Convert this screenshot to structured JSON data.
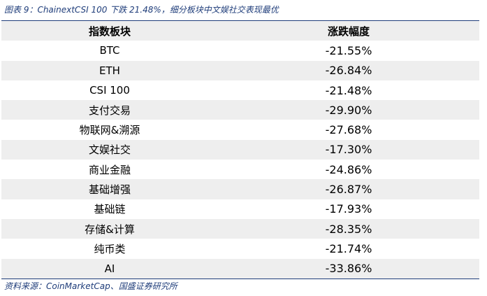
{
  "caption": "图表 9：ChainextCSI 100 下跌 21.48%，细分板块中文娱社交表现最优",
  "table": {
    "headers": {
      "name": "指数板块",
      "change": "涨跌幅度"
    },
    "rows": [
      {
        "name": "BTC",
        "change": "-21.55%"
      },
      {
        "name": "ETH",
        "change": "-26.84%"
      },
      {
        "name": "CSI 100",
        "change": "-21.48%"
      },
      {
        "name": "支付交易",
        "change": "-29.90%"
      },
      {
        "name": "物联网&溯源",
        "change": "-27.68%"
      },
      {
        "name": "文娱社交",
        "change": "-17.30%"
      },
      {
        "name": "商业金融",
        "change": "-24.86%"
      },
      {
        "name": "基础增强",
        "change": "-26.87%"
      },
      {
        "name": "基础链",
        "change": "-17.93%"
      },
      {
        "name": "存储&计算",
        "change": "-28.35%"
      },
      {
        "name": "纯币类",
        "change": "-21.74%"
      },
      {
        "name": "AI",
        "change": "-33.86%"
      }
    ]
  },
  "source": "资料来源：CoinMarketCap、国盛证券研究所",
  "colors": {
    "accent": "#1f3d7a",
    "row_shade": "#eeeeee"
  }
}
